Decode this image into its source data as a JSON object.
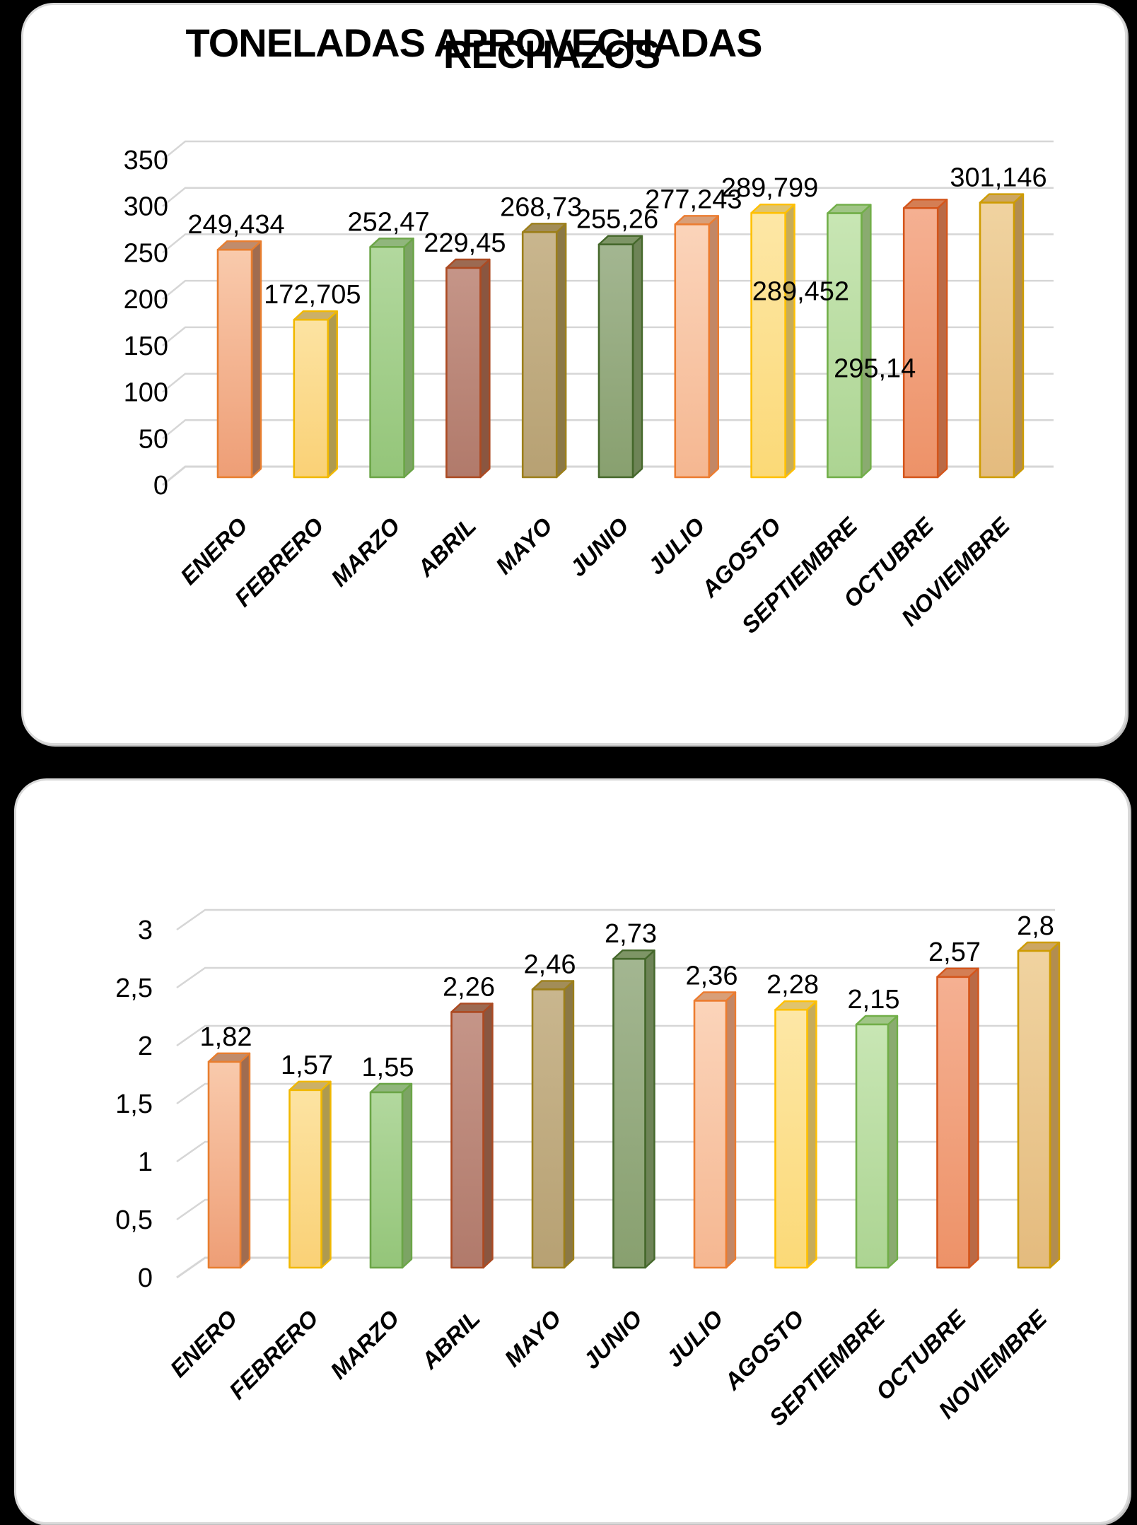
{
  "page": {
    "background_color": "#000000",
    "card_color": "#ffffff",
    "card_border_color": "#d9d9d9",
    "gridline_color": "#d6d6d6",
    "text_color": "#000000"
  },
  "palette": [
    {
      "month": "ENERO",
      "border": "#E87E2F",
      "light": "#F9CAAC",
      "base": "#EE9E76",
      "side": "#A06C50",
      "top": "#C08C6C"
    },
    {
      "month": "FEBRERO",
      "border": "#F1B800",
      "light": "#FCE3A2",
      "base": "#FAD176",
      "side": "#AE9A50",
      "top": "#CBB068"
    },
    {
      "month": "MARZO",
      "border": "#6BA547",
      "light": "#B2D89E",
      "base": "#94C579",
      "side": "#7CA464",
      "top": "#90B67C"
    },
    {
      "month": "ABRIL",
      "border": "#AC4A22",
      "light": "#C59588",
      "base": "#B17A6B",
      "side": "#8A5640",
      "top": "#9C6A52"
    },
    {
      "month": "MAYO",
      "border": "#9C7F1A",
      "light": "#C9B68E",
      "base": "#B7A173",
      "side": "#8B7845",
      "top": "#A28D58"
    },
    {
      "month": "JUNIO",
      "border": "#45682B",
      "light": "#A3B691",
      "base": "#88A06F",
      "side": "#6E8457",
      "top": "#7E9566"
    },
    {
      "month": "JULIO",
      "border": "#EC7C30",
      "light": "#FBD4BA",
      "base": "#F5B791",
      "side": "#C28766",
      "top": "#D89F78"
    },
    {
      "month": "AGOSTO",
      "border": "#FFC002",
      "light": "#FDE7A6",
      "base": "#FBD977",
      "side": "#C6AC5A",
      "top": "#E0C46E"
    },
    {
      "month": "SEPTIEMBRE",
      "border": "#71AE48",
      "light": "#C8E6B4",
      "base": "#ACD492",
      "side": "#8AAB70",
      "top": "#A0C586"
    },
    {
      "month": "OCTUBRE",
      "border": "#D4561C",
      "light": "#F5B092",
      "base": "#ED9268",
      "side": "#BA6A46",
      "top": "#D47E54"
    },
    {
      "month": "NOVIEMBRE",
      "border": "#CE9C02",
      "light": "#F0D3A0",
      "base": "#E4BB7E",
      "side": "#B28D50",
      "top": "#CCA661"
    }
  ],
  "chart_data": [
    {
      "type": "bar",
      "style": "3d-column",
      "title": "TONELADAS APROVECHADAS",
      "categories": [
        "ENERO",
        "FEBRERO",
        "MARZO",
        "ABRIL",
        "MAYO",
        "JUNIO",
        "JULIO",
        "AGOSTO",
        "SEPTIEMBRE",
        "OCTUBRE",
        "NOVIEMBRE"
      ],
      "values": [
        249.434,
        172.705,
        252.47,
        229.45,
        268.73,
        255.26,
        277.243,
        289.799,
        289.452,
        295.14,
        301.146
      ],
      "value_labels": [
        "249,434",
        "172,705",
        "252,47",
        "229,45",
        "268,73",
        "255,26",
        "277,243",
        "289,799",
        "289,452",
        "295,14",
        "301,146"
      ],
      "ytick_labels": [
        "0",
        "50",
        "100",
        "150",
        "200",
        "250",
        "300",
        "350"
      ],
      "ylim": [
        0,
        350
      ],
      "ytick_step": 50,
      "xlabel": "",
      "ylabel": "",
      "grid": true,
      "legend": false
    },
    {
      "type": "bar",
      "style": "3d-column",
      "title": "RECHAZOS",
      "categories": [
        "ENERO",
        "FEBRERO",
        "MARZO",
        "ABRIL",
        "MAYO",
        "JUNIO",
        "JULIO",
        "AGOSTO",
        "SEPTIEMBRE",
        "OCTUBRE",
        "NOVIEMBRE"
      ],
      "values": [
        1.82,
        1.57,
        1.55,
        2.26,
        2.46,
        2.73,
        2.36,
        2.28,
        2.15,
        2.57,
        2.8
      ],
      "value_labels": [
        "1,82",
        "1,57",
        "1,55",
        "2,26",
        "2,46",
        "2,73",
        "2,36",
        "2,28",
        "2,15",
        "2,57",
        "2,8"
      ],
      "ytick_labels": [
        "0",
        "0,5",
        "1",
        "1,5",
        "2",
        "2,5",
        "3"
      ],
      "ylim": [
        0,
        3
      ],
      "ytick_step": 0.5,
      "xlabel": "",
      "ylabel": "",
      "grid": true,
      "legend": false
    }
  ]
}
